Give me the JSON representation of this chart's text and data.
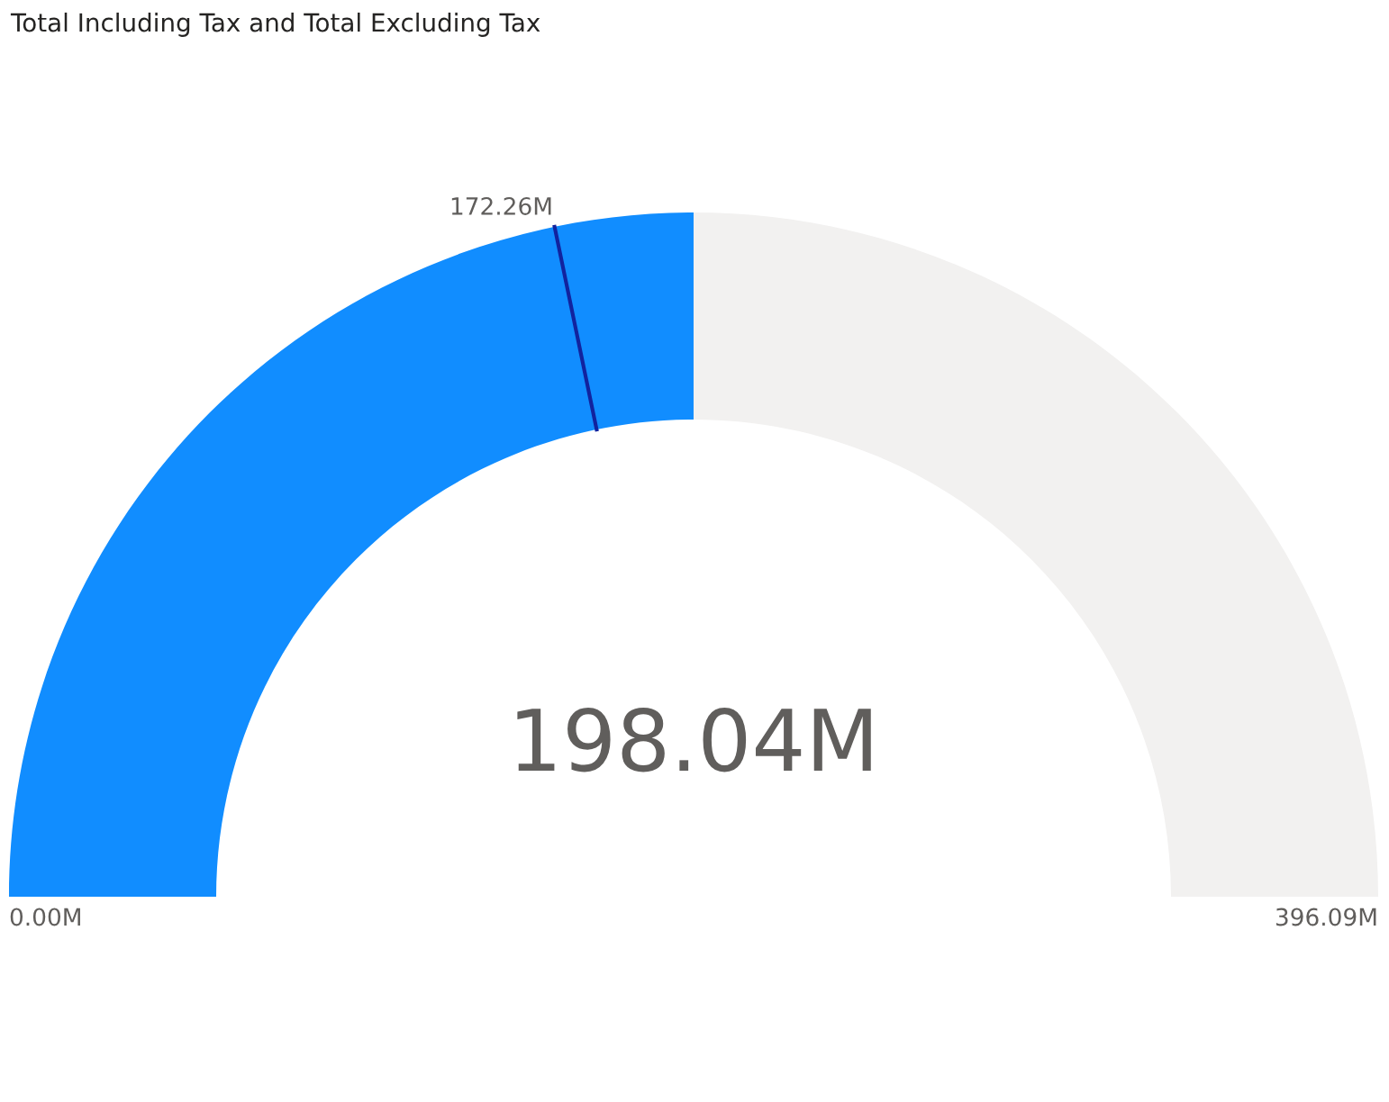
{
  "chart_data": {
    "type": "other",
    "title": "Total Including Tax and Total Excluding Tax",
    "values": [
      172.26,
      198.04,
      0,
      396.09
    ],
    "value_labels": [
      "172.26M",
      "198.04M",
      "0.00M",
      "396.09M"
    ],
    "colors": [
      "#12239e",
      "#118dff",
      "#605e5c",
      "#f2f1f0"
    ]
  }
}
